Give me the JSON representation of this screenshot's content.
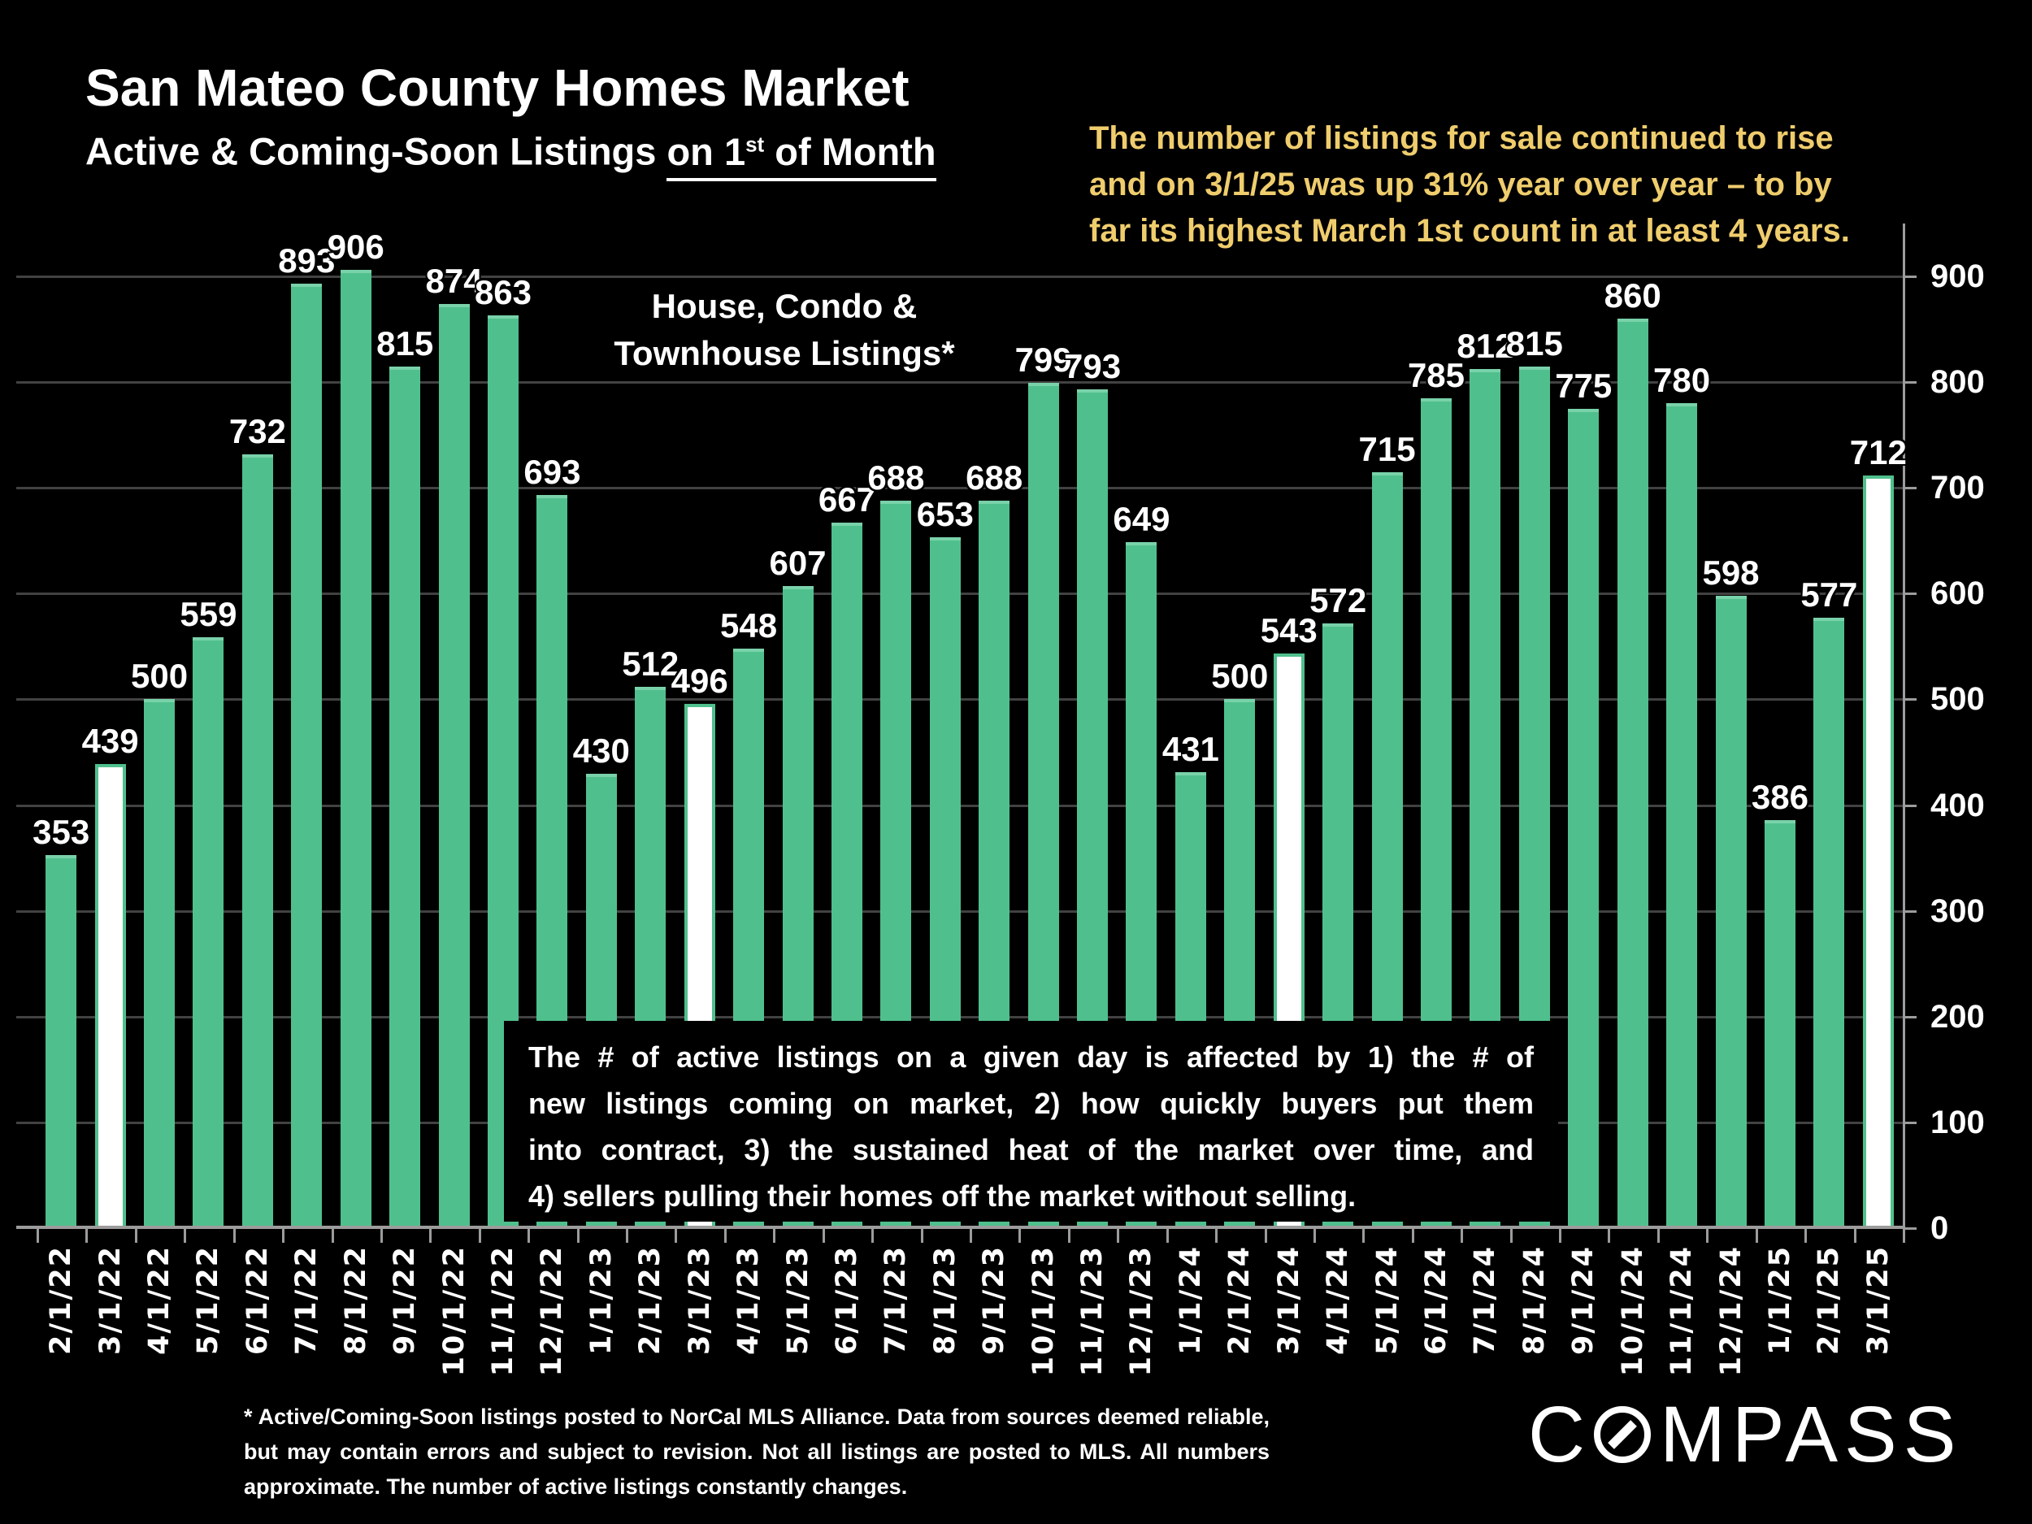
{
  "title": "San Mateo County Homes Market",
  "subtitle": {
    "prefix": "Active & Coming-Soon Listings ",
    "underline_pre": "on 1",
    "sup": "st",
    "underline_post": " of Month"
  },
  "highlight_note": {
    "color": "#EFCD6D",
    "lines": [
      "The number of listings for sale continued to rise",
      "and on 3/1/25 was up 31% year over year – to by",
      "far its highest March 1st count in at least 4 years."
    ]
  },
  "series_label": {
    "line1": "House, Condo &",
    "line2": "Townhouse Listings*"
  },
  "explainer_box": {
    "lines": [
      "The # of active listings on a given day is affected by 1) the # of",
      "new listings coming on market, 2) how quickly buyers put them",
      "into contract, 3) the sustained heat of the market over time, and",
      "4) sellers pulling their homes off the market without selling."
    ]
  },
  "footnote": {
    "lines": [
      "* Active/Coming-Soon listings posted to NorCal MLS Alliance.  Data from sources deemed reliable,",
      "but may contain errors and subject to revision.  Not all listings are posted to MLS. All numbers",
      "approximate. The number of active listings constantly changes."
    ]
  },
  "logo": {
    "part1": "C",
    "part2": "MPASS"
  },
  "colors": {
    "bar_green": "#4FC08D",
    "bar_green_cap": "#79D2AA",
    "bar_white": "#FFFFFF",
    "highlight_text": "#EFCD6D",
    "gridline": "#424242",
    "axis": "#9C9C9C",
    "background": "#000000"
  },
  "chart_data": {
    "type": "bar",
    "title": "San Mateo County Homes Market — Active & Coming-Soon Listings on 1st of Month",
    "xlabel": "",
    "ylabel": "",
    "ylim": [
      0,
      900
    ],
    "yticks": [
      0,
      100,
      200,
      300,
      400,
      500,
      600,
      700,
      800,
      900
    ],
    "grid": true,
    "legend_position": "none",
    "categories": [
      "2/1/22",
      "3/1/22",
      "4/1/22",
      "5/1/22",
      "6/1/22",
      "7/1/22",
      "8/1/22",
      "9/1/22",
      "10/1/22",
      "11/1/22",
      "12/1/22",
      "1/1/23",
      "2/1/23",
      "3/1/23",
      "4/1/23",
      "5/1/23",
      "6/1/23",
      "7/1/23",
      "8/1/23",
      "9/1/23",
      "10/1/23",
      "11/1/23",
      "12/1/23",
      "1/1/24",
      "2/1/24",
      "3/1/24",
      "4/1/24",
      "5/1/24",
      "6/1/24",
      "7/1/24",
      "8/1/24",
      "9/1/24",
      "10/1/24",
      "11/1/24",
      "12/1/24",
      "1/1/25",
      "2/1/25",
      "3/1/25"
    ],
    "values": [
      353,
      439,
      500,
      559,
      732,
      893,
      906,
      815,
      874,
      863,
      693,
      430,
      512,
      496,
      548,
      607,
      667,
      688,
      653,
      688,
      799,
      793,
      649,
      431,
      500,
      543,
      572,
      715,
      785,
      812,
      815,
      775,
      860,
      780,
      598,
      386,
      577,
      712
    ],
    "highlight_white_categories": [
      "3/1/22",
      "3/1/23",
      "3/1/24",
      "3/1/25"
    ]
  }
}
